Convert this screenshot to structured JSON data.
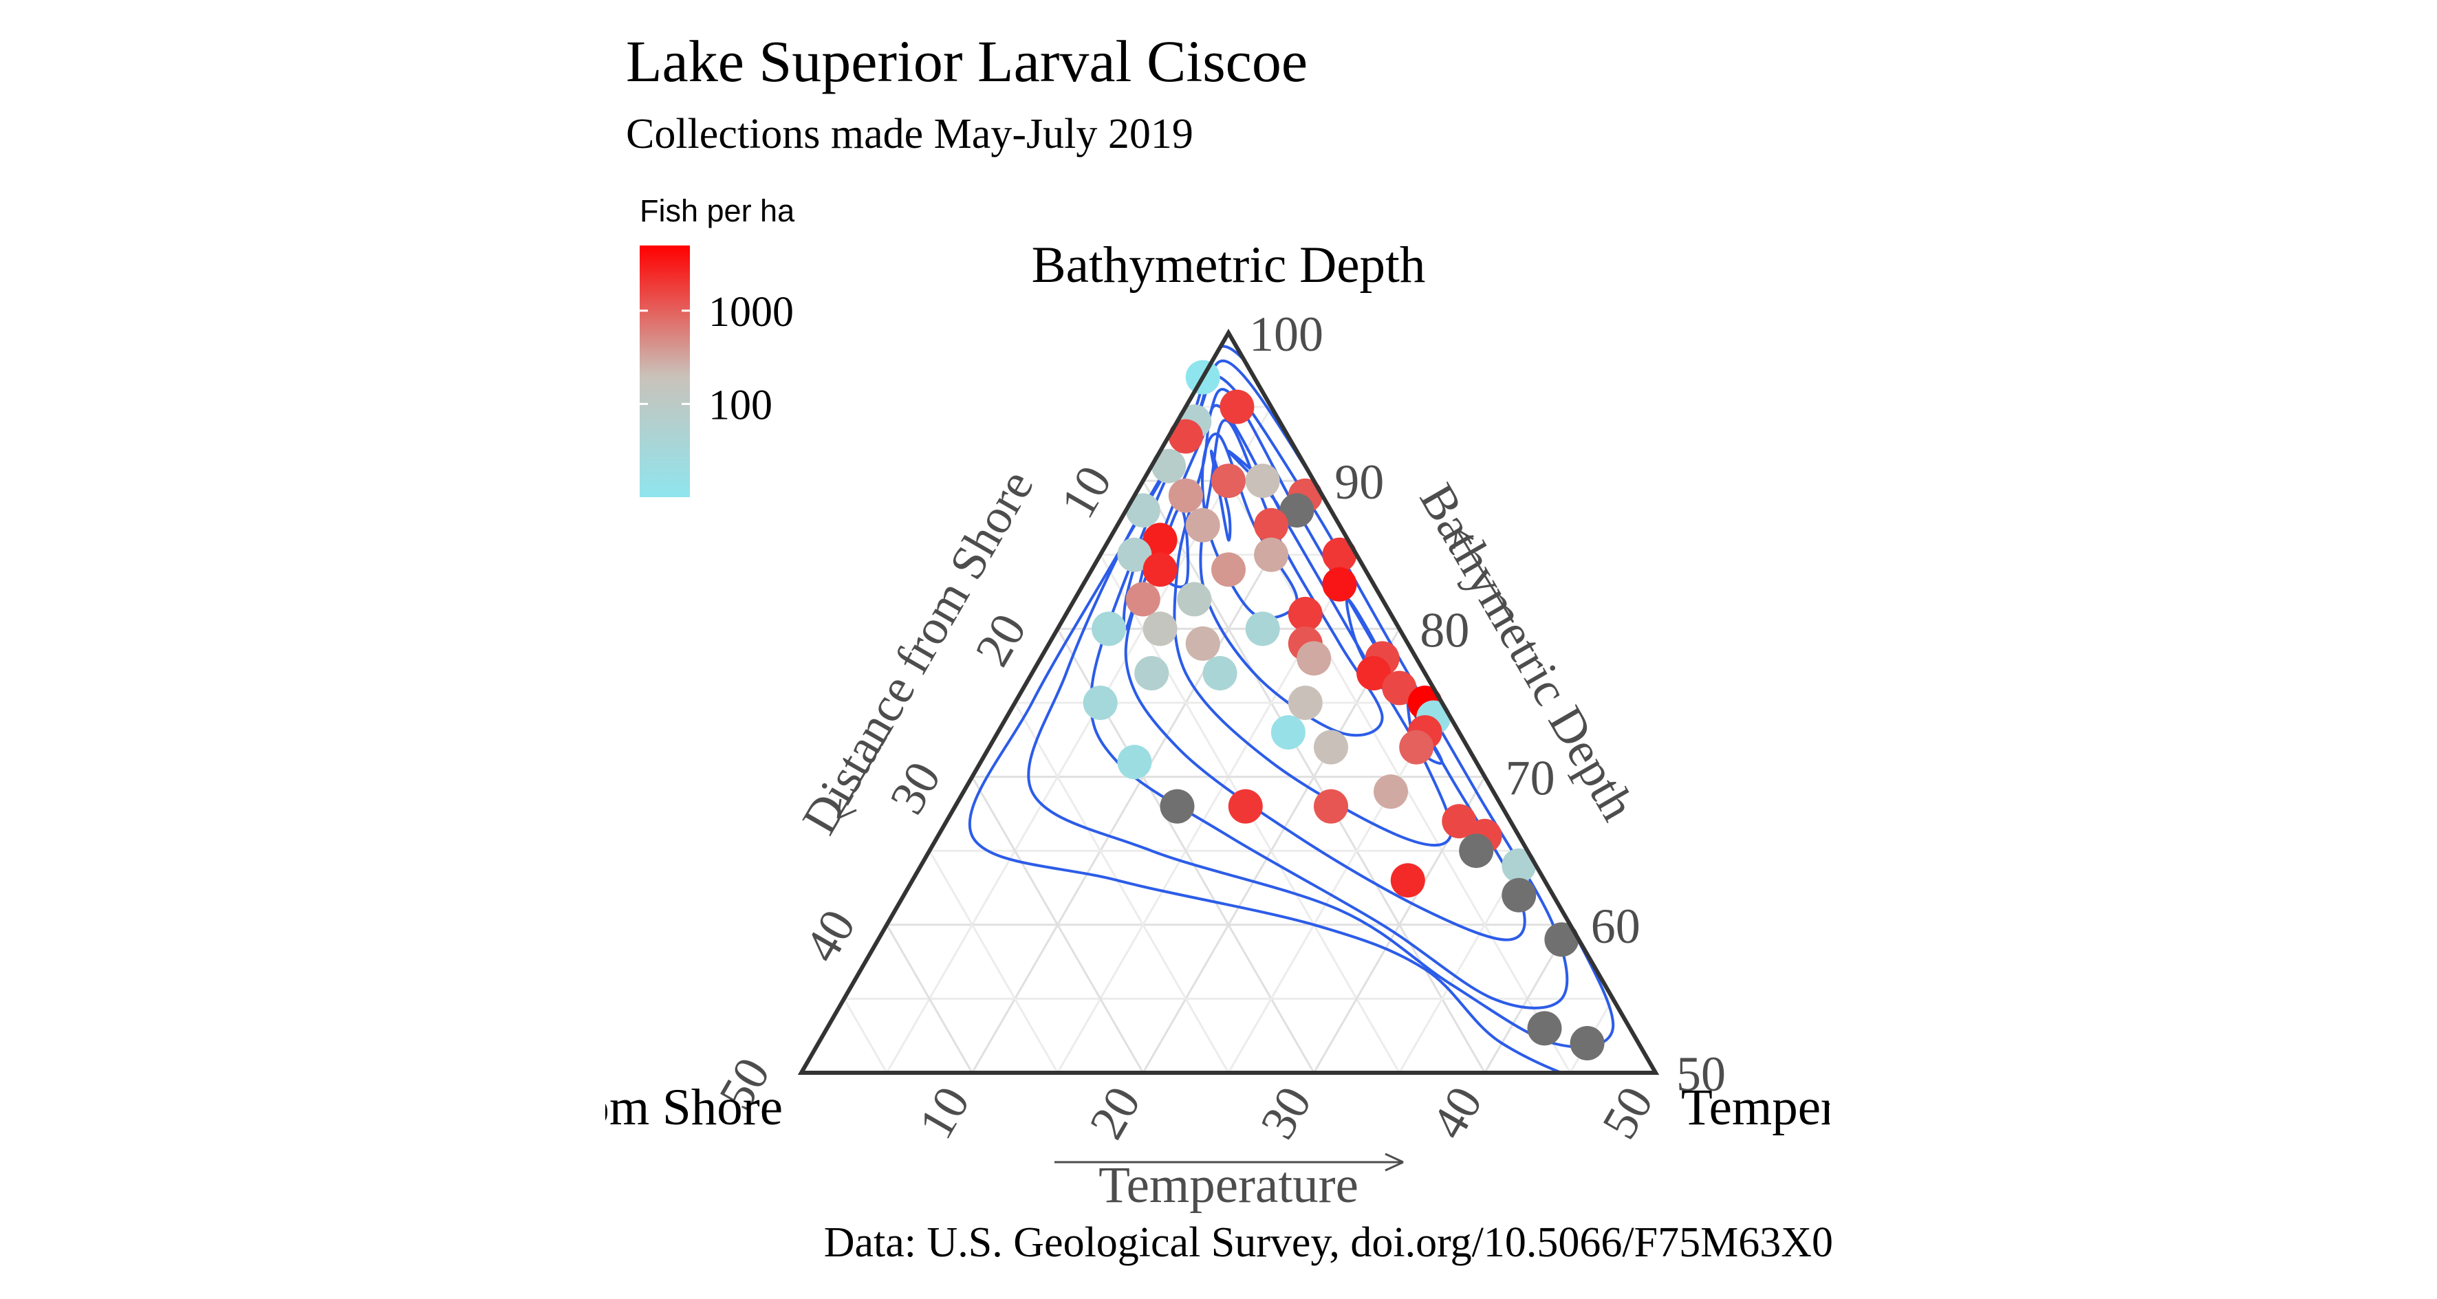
{
  "chart_data": {
    "type": "scatter",
    "plot_kind": "ternary",
    "title": "Lake Superior Larval Ciscoe",
    "subtitle": "Collections made May-July 2019",
    "caption": "Data: U.S. Geological Survey, doi.org/10.5066/F75M63X0",
    "vertex_labels": {
      "top": "Bathymetric Depth",
      "left": "Distance from Shore",
      "right": "Temperature"
    },
    "axis_labels": {
      "left": "Distance from Shore",
      "bottom": "Temperature",
      "right": "Bathymetric Depth"
    },
    "axis_limits": {
      "depth": [
        50,
        100
      ],
      "distance": [
        0,
        50
      ],
      "temperature": [
        0,
        50
      ]
    },
    "ticks": {
      "left": [
        "10",
        "20",
        "30",
        "40",
        "50"
      ],
      "bottom": [
        "10",
        "20",
        "30",
        "40",
        "50"
      ],
      "right": [
        "100",
        "90",
        "80",
        "70",
        "60",
        "50"
      ]
    },
    "legend": {
      "title": "Fish per ha",
      "scale": "log",
      "labels": [
        "1000",
        "100"
      ],
      "label_values": [
        1000,
        100
      ],
      "range": [
        10,
        5000
      ],
      "low_color": "#8fe5ee",
      "mid_color": "#c9c2ba",
      "high_color": "#ff0000",
      "placement": "top-left",
      "missing_color": "#707070"
    },
    "contour_color": "#2c5ce8",
    "grid": true,
    "points": [
      {
        "depth": 97,
        "distance": 3,
        "temperature": 0,
        "fish_per_ha": 10
      },
      {
        "depth": 95,
        "distance": 2,
        "temperature": 3,
        "fish_per_ha": 1800
      },
      {
        "depth": 94,
        "distance": 5,
        "temperature": 1,
        "fish_per_ha": 60
      },
      {
        "depth": 93,
        "distance": 6,
        "temperature": 1,
        "fish_per_ha": 1500
      },
      {
        "depth": 91,
        "distance": 8,
        "temperature": 1,
        "fish_per_ha": 80
      },
      {
        "depth": 90,
        "distance": 5,
        "temperature": 5,
        "fish_per_ha": 1000
      },
      {
        "depth": 90,
        "distance": 3,
        "temperature": 7,
        "fish_per_ha": 200
      },
      {
        "depth": 89,
        "distance": 8,
        "temperature": 3,
        "fish_per_ha": 400
      },
      {
        "depth": 89,
        "distance": 1,
        "temperature": 10,
        "fish_per_ha": 1200
      },
      {
        "depth": 88,
        "distance": 2,
        "temperature": 10,
        "fish_per_ha": null
      },
      {
        "depth": 88,
        "distance": 11,
        "temperature": 1,
        "fish_per_ha": 60
      },
      {
        "depth": 87,
        "distance": 4,
        "temperature": 9,
        "fish_per_ha": 1300
      },
      {
        "depth": 87,
        "distance": 8,
        "temperature": 5,
        "fish_per_ha": 300
      },
      {
        "depth": 86,
        "distance": 11,
        "temperature": 3,
        "fish_per_ha": 3000
      },
      {
        "depth": 85,
        "distance": 5,
        "temperature": 10,
        "fish_per_ha": 300
      },
      {
        "depth": 85,
        "distance": 13,
        "temperature": 2,
        "fish_per_ha": 60
      },
      {
        "depth": 85,
        "distance": 1,
        "temperature": 14,
        "fish_per_ha": 2000
      },
      {
        "depth": 84,
        "distance": 12,
        "temperature": 4,
        "fish_per_ha": 2500
      },
      {
        "depth": 84,
        "distance": 8,
        "temperature": 8,
        "fish_per_ha": 400
      },
      {
        "depth": 83,
        "distance": 2,
        "temperature": 15,
        "fish_per_ha": 3500
      },
      {
        "depth": 82,
        "distance": 11,
        "temperature": 7,
        "fish_per_ha": 100
      },
      {
        "depth": 82,
        "distance": 14,
        "temperature": 4,
        "fish_per_ha": 500
      },
      {
        "depth": 81,
        "distance": 5,
        "temperature": 14,
        "fish_per_ha": 1800
      },
      {
        "depth": 80,
        "distance": 8,
        "temperature": 12,
        "fish_per_ha": 40
      },
      {
        "depth": 80,
        "distance": 14,
        "temperature": 6,
        "fish_per_ha": 150
      },
      {
        "depth": 80,
        "distance": 17,
        "temperature": 3,
        "fish_per_ha": 30
      },
      {
        "depth": 79,
        "distance": 6,
        "temperature": 15,
        "fish_per_ha": 1200
      },
      {
        "depth": 79,
        "distance": 12,
        "temperature": 9,
        "fish_per_ha": 250
      },
      {
        "depth": 78,
        "distance": 2,
        "temperature": 20,
        "fish_per_ha": 1500
      },
      {
        "depth": 78,
        "distance": 6,
        "temperature": 16,
        "fish_per_ha": 300
      },
      {
        "depth": 77,
        "distance": 12,
        "temperature": 11,
        "fish_per_ha": 40
      },
      {
        "depth": 77,
        "distance": 16,
        "temperature": 7,
        "fish_per_ha": 60
      },
      {
        "depth": 77,
        "distance": 3,
        "temperature": 20,
        "fish_per_ha": 2500
      },
      {
        "depth": 76,
        "distance": 2,
        "temperature": 22,
        "fish_per_ha": 1500
      },
      {
        "depth": 75,
        "distance": 8,
        "temperature": 17,
        "fish_per_ha": 200
      },
      {
        "depth": 75,
        "distance": 20,
        "temperature": 5,
        "fish_per_ha": 30
      },
      {
        "depth": 75,
        "distance": 1,
        "temperature": 24,
        "fish_per_ha": 6000
      },
      {
        "depth": 74,
        "distance": 1,
        "temperature": 25,
        "fish_per_ha": 15
      },
      {
        "depth": 73,
        "distance": 2,
        "temperature": 25,
        "fish_per_ha": 1800
      },
      {
        "depth": 73,
        "distance": 10,
        "temperature": 17,
        "fish_per_ha": 15
      },
      {
        "depth": 72,
        "distance": 8,
        "temperature": 20,
        "fish_per_ha": 200
      },
      {
        "depth": 72,
        "distance": 3,
        "temperature": 25,
        "fish_per_ha": 1000
      },
      {
        "depth": 71,
        "distance": 20,
        "temperature": 9,
        "fish_per_ha": 20
      },
      {
        "depth": 69,
        "distance": 6,
        "temperature": 25,
        "fish_per_ha": 300
      },
      {
        "depth": 68,
        "distance": 10,
        "temperature": 22,
        "fish_per_ha": 1200
      },
      {
        "depth": 68,
        "distance": 15,
        "temperature": 17,
        "fish_per_ha": 2000
      },
      {
        "depth": 68,
        "distance": 19,
        "temperature": 13,
        "fish_per_ha": null
      },
      {
        "depth": 67,
        "distance": 3,
        "temperature": 30,
        "fish_per_ha": 1500
      },
      {
        "depth": 66,
        "distance": 2,
        "temperature": 32,
        "fish_per_ha": 1500
      },
      {
        "depth": 65,
        "distance": 3,
        "temperature": 32,
        "fish_per_ha": null
      },
      {
        "depth": 64,
        "distance": 1,
        "temperature": 35,
        "fish_per_ha": 50
      },
      {
        "depth": 63,
        "distance": 8,
        "temperature": 29,
        "fish_per_ha": 2500
      },
      {
        "depth": 62,
        "distance": 2,
        "temperature": 36,
        "fish_per_ha": null
      },
      {
        "depth": 59,
        "distance": 1,
        "temperature": 40,
        "fish_per_ha": null
      },
      {
        "depth": 53,
        "distance": 5,
        "temperature": 42,
        "fish_per_ha": null
      },
      {
        "depth": 52,
        "distance": 3,
        "temperature": 45,
        "fish_per_ha": null
      }
    ]
  }
}
